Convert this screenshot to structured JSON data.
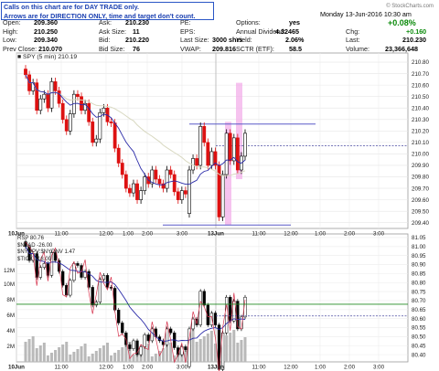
{
  "header": {
    "note_lines": [
      "Calls on this chart are for DAY TRADE only.",
      "Arrows are for DIRECTION ONLY, time and target don't count."
    ],
    "date_label": "Monday 13-Jun-2016 10:30 am",
    "watermark": "© StockCharts.com",
    "rows": [
      {
        "l1": "Open:",
        "v1": "209.360",
        "l2": "Ask:",
        "v2": "210.230",
        "l3": "PE:",
        "v3": "",
        "l4": "Options:",
        "v4": "yes"
      },
      {
        "l1": "High:",
        "v1": "210.250",
        "l2": "Ask Size:",
        "v2": "11",
        "l3": "EPS:",
        "v3": "",
        "l4": "Annual Dividend:",
        "v4": "4.32465"
      },
      {
        "l1": "Low:",
        "v1": "209.340",
        "l2": "Bid:",
        "v2": "210.220",
        "l3": "Last Size:",
        "v3": "3000 shrs",
        "l4": "Yield:",
        "v4": "2.06%"
      },
      {
        "l1": "Prev Close:",
        "v1": "210.070",
        "l2": "Bid Size:",
        "v2": "76",
        "l3": "VWAP:",
        "v3": "209.816",
        "l4": "SCTR (ETF):",
        "v4": "58.5"
      }
    ],
    "pct_change": "+0.08%",
    "right_rows": [
      {
        "l": "Chg:",
        "v": "+0.160"
      },
      {
        "l": "Last:",
        "v": "210.230"
      },
      {
        "l": "Volume:",
        "v": "23,366,648"
      }
    ]
  },
  "chart_data": [
    {
      "type": "candlestick",
      "series_label": "SPY (5 min) 210.19",
      "ylim": [
        209.35,
        210.88
      ],
      "yticks": [
        "210.80",
        "210.70",
        "210.60",
        "210.50",
        "210.40",
        "210.30",
        "210.20",
        "210.10",
        "210.00",
        "209.90",
        "209.80",
        "209.70",
        "209.60",
        "209.50",
        "209.40"
      ],
      "xticks": [
        "10Jun",
        "11:00",
        "12:00",
        "1:00",
        "2:00",
        "3:00",
        "13Jun",
        "11:00",
        "12:00",
        "1:00",
        "2:00",
        "3:00"
      ],
      "close": [
        210.69,
        210.55,
        210.62,
        210.38,
        210.48,
        210.52,
        210.4,
        210.63,
        210.55,
        210.44,
        210.3,
        210.2,
        210.35,
        210.52,
        210.5,
        210.38,
        210.44,
        210.28,
        210.1,
        210.13,
        210.36,
        210.4,
        210.28,
        210.27,
        210.05,
        209.92,
        209.82,
        209.7,
        209.66,
        209.74,
        209.6,
        209.68,
        209.8,
        209.74,
        209.86,
        209.78,
        209.74,
        209.7,
        209.86,
        209.82,
        209.67,
        209.6,
        209.68,
        209.65,
        209.86,
        209.96,
        209.9,
        210.24,
        210.1,
        209.9,
        210.02,
        209.9,
        209.45,
        209.82,
        210.18,
        209.94,
        210.14,
        209.86,
        209.98,
        210.18
      ],
      "upper_line": 210.26,
      "lower_line": 209.38,
      "ref_line": 210.07
    },
    {
      "type": "line",
      "legend": [
        "RSP 80.76",
        "$NYAD -26.00",
        "$NYUPV:$NYDNV 1.47",
        "$TICK 718.00"
      ],
      "ylim": [
        80.36,
        81.07
      ],
      "yticks": [
        "81.05",
        "81.00",
        "80.95",
        "80.90",
        "80.85",
        "80.80",
        "80.75",
        "80.70",
        "80.65",
        "80.60",
        "80.55",
        "80.50",
        "80.45",
        "80.40"
      ],
      "volume_ticks": [
        "12M",
        "10M",
        "8M",
        "6M",
        "4M",
        "2M"
      ],
      "xticks": [
        "10Jun",
        "11:00",
        "12:00",
        "1:00",
        "2:00",
        "3:00",
        "13Jun",
        "11:00",
        "12:00",
        "1:00",
        "2:00",
        "3:00"
      ]
    }
  ]
}
